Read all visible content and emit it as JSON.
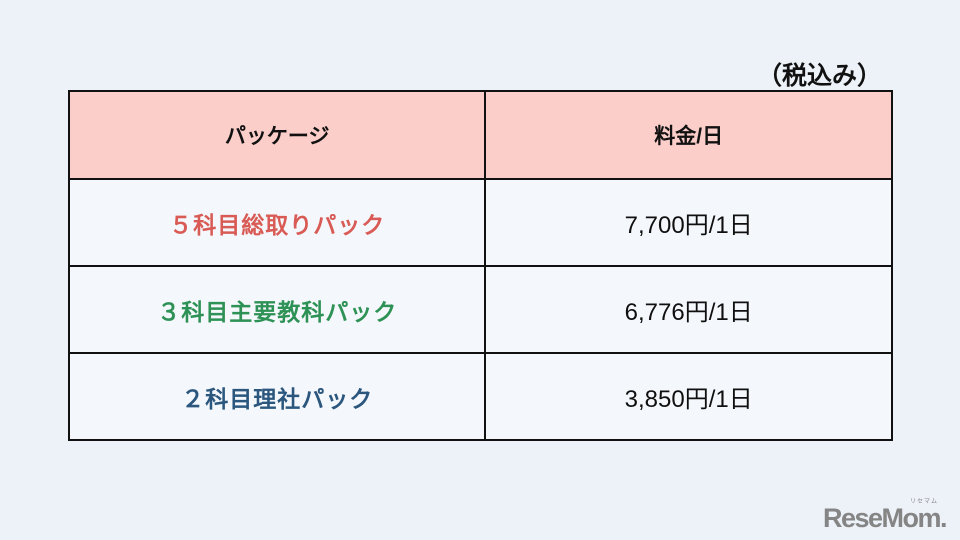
{
  "page": {
    "tax_note": "（税込み）"
  },
  "table": {
    "headers": {
      "package": "パッケージ",
      "price": "料金/日"
    },
    "rows": [
      {
        "package": "５科目総取りパック",
        "price": "7,700円/1日",
        "color": "#d95b55"
      },
      {
        "package": "３科目主要教科パック",
        "price": "6,776円/1日",
        "color": "#2e9155"
      },
      {
        "package": "２科目理社パック",
        "price": "3,850円/1日",
        "color": "#2b567d"
      }
    ]
  },
  "logo": {
    "text": "ReseMom.",
    "ruby": "リセマム"
  },
  "colors": {
    "background": "#edf2f8",
    "header_bg": "#fbceca",
    "cell_bg": "#f4f8fc",
    "border": "#111111",
    "logo": "#858585"
  }
}
